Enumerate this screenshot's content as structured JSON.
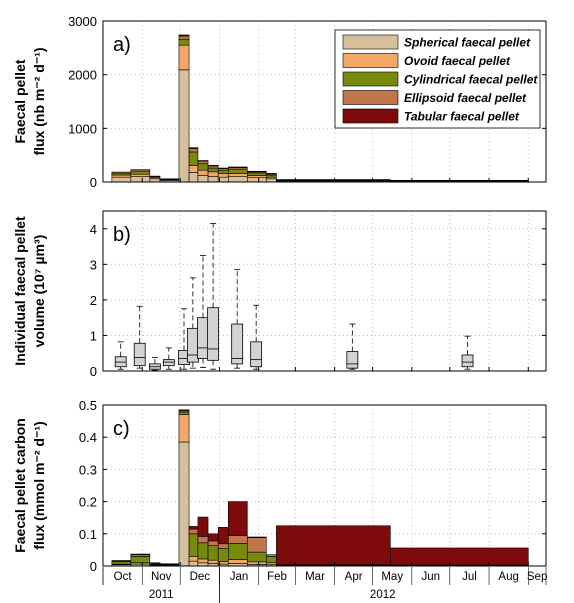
{
  "colors": {
    "spherical": "#d6bf9b",
    "ovoid": "#f1a766",
    "cylindrical": "#778a0e",
    "ellipsoid": "#c0764a",
    "tabular": "#7e0b0b",
    "box_fill": "#d3d3d3"
  },
  "chart_data": [
    {
      "id": "a",
      "type": "bar",
      "panel_label": "a)",
      "ylabel_lines": [
        "Faecal pellet",
        "flux (nb m⁻² d⁻¹)"
      ],
      "ylim": [
        0,
        3000
      ],
      "yticks": [
        "0",
        "1000",
        "2000",
        "3000"
      ],
      "grid": true,
      "legend_position": "top-right",
      "legend": [
        "Spherical faecal pellet",
        "Ovoid faecal pellet",
        "Cylindrical faecal pellet",
        "Ellipsoid faecal pellet",
        "Tabular faecal pellet"
      ],
      "bins": [
        {
          "start": "2011-10-08",
          "end": "2011-10-23",
          "spherical": 90,
          "ovoid": 40,
          "cylindrical": 35,
          "ellipsoid": 20,
          "tabular": 0
        },
        {
          "start": "2011-10-23",
          "end": "2011-11-07",
          "spherical": 100,
          "ovoid": 45,
          "cylindrical": 60,
          "ellipsoid": 25,
          "tabular": 0
        },
        {
          "start": "2011-11-07",
          "end": "2011-11-15",
          "spherical": 60,
          "ovoid": 20,
          "cylindrical": 20,
          "ellipsoid": 10,
          "tabular": 0
        },
        {
          "start": "2011-11-15",
          "end": "2011-11-30",
          "spherical": 30,
          "ovoid": 15,
          "cylindrical": 10,
          "ellipsoid": 5,
          "tabular": 0
        },
        {
          "start": "2011-11-30",
          "end": "2011-12-08",
          "spherical": 2090,
          "ovoid": 460,
          "cylindrical": 110,
          "ellipsoid": 60,
          "tabular": 20
        },
        {
          "start": "2011-12-08",
          "end": "2011-12-15",
          "spherical": 180,
          "ovoid": 130,
          "cylindrical": 250,
          "ellipsoid": 60,
          "tabular": 20
        },
        {
          "start": "2011-12-15",
          "end": "2011-12-23",
          "spherical": 120,
          "ovoid": 100,
          "cylindrical": 120,
          "ellipsoid": 50,
          "tabular": 10
        },
        {
          "start": "2011-12-23",
          "end": "2011-12-31",
          "spherical": 100,
          "ovoid": 90,
          "cylindrical": 70,
          "ellipsoid": 40,
          "tabular": 10
        },
        {
          "start": "2011-12-31",
          "end": "2012-01-08",
          "spherical": 90,
          "ovoid": 70,
          "cylindrical": 60,
          "ellipsoid": 30,
          "tabular": 10
        },
        {
          "start": "2012-01-08",
          "end": "2012-01-23",
          "spherical": 100,
          "ovoid": 60,
          "cylindrical": 80,
          "ellipsoid": 30,
          "tabular": 10
        },
        {
          "start": "2012-01-23",
          "end": "2012-02-07",
          "spherical": 80,
          "ovoid": 40,
          "cylindrical": 50,
          "ellipsoid": 20,
          "tabular": 10
        },
        {
          "start": "2012-02-07",
          "end": "2012-02-15",
          "spherical": 60,
          "ovoid": 30,
          "cylindrical": 40,
          "ellipsoid": 20,
          "tabular": 10
        },
        {
          "start": "2012-02-15",
          "end": "2012-05-15",
          "spherical": 18,
          "ovoid": 8,
          "cylindrical": 8,
          "ellipsoid": 6,
          "tabular": 6
        },
        {
          "start": "2012-05-15",
          "end": "2012-09-01",
          "spherical": 12,
          "ovoid": 6,
          "cylindrical": 6,
          "ellipsoid": 4,
          "tabular": 4
        }
      ]
    },
    {
      "id": "b",
      "type": "box",
      "panel_label": "b)",
      "ylabel_lines": [
        "Individual faecal pellet",
        "volume (10⁷ µm³)"
      ],
      "ylim": [
        0,
        4.5
      ],
      "yticks": [
        "0",
        "1",
        "2",
        "3",
        "4"
      ],
      "grid": true,
      "boxes": [
        {
          "date": "2011-10-15",
          "min": 0.05,
          "q1": 0.12,
          "median": 0.25,
          "q3": 0.4,
          "max": 0.82
        },
        {
          "date": "2011-10-30",
          "min": 0.08,
          "q1": 0.15,
          "median": 0.38,
          "q3": 0.78,
          "max": 1.82
        },
        {
          "date": "2011-11-11",
          "min": 0.02,
          "q1": 0.05,
          "median": 0.12,
          "q3": 0.2,
          "max": 0.38
        },
        {
          "date": "2011-11-22",
          "min": 0.05,
          "q1": 0.15,
          "median": 0.25,
          "q3": 0.32,
          "max": 0.65
        },
        {
          "date": "2011-12-04",
          "min": 0.05,
          "q1": 0.18,
          "median": 0.35,
          "q3": 0.58,
          "max": 1.75
        },
        {
          "date": "2011-12-11",
          "min": 0.08,
          "q1": 0.25,
          "median": 0.45,
          "q3": 1.2,
          "max": 2.62
        },
        {
          "date": "2011-12-19",
          "min": 0.1,
          "q1": 0.35,
          "median": 0.65,
          "q3": 1.5,
          "max": 3.25
        },
        {
          "date": "2011-12-27",
          "min": 0.05,
          "q1": 0.3,
          "median": 0.62,
          "q3": 1.78,
          "max": 4.15
        },
        {
          "date": "2012-01-15",
          "min": 0.08,
          "q1": 0.2,
          "median": 0.35,
          "q3": 1.32,
          "max": 2.85
        },
        {
          "date": "2012-01-30",
          "min": 0.05,
          "q1": 0.12,
          "median": 0.32,
          "q3": 0.82,
          "max": 1.85
        },
        {
          "date": "2012-04-15",
          "min": 0.05,
          "q1": 0.08,
          "median": 0.2,
          "q3": 0.55,
          "max": 1.32
        },
        {
          "date": "2012-07-15",
          "min": 0.05,
          "q1": 0.12,
          "median": 0.25,
          "q3": 0.45,
          "max": 0.98
        }
      ]
    },
    {
      "id": "c",
      "type": "bar",
      "panel_label": "c)",
      "ylabel_lines": [
        "Faecal pellet carbon",
        "flux (mmol m⁻² d⁻¹)"
      ],
      "ylim": [
        0,
        0.5
      ],
      "yticks": [
        "0",
        "0.1",
        "0.2",
        "0.3",
        "0.4",
        "0.5"
      ],
      "grid": true,
      "x_month_labels": [
        "Oct",
        "Nov",
        "Dec",
        "Jan",
        "Feb",
        "Mar",
        "Apr",
        "May",
        "Jun",
        "Jul",
        "Aug",
        "Sep"
      ],
      "x_year_labels": [
        "2011",
        "2012"
      ],
      "bins": [
        {
          "start": "2011-10-08",
          "end": "2011-10-23",
          "spherical": 0.004,
          "ovoid": 0.002,
          "cylindrical": 0.008,
          "ellipsoid": 0.002,
          "tabular": 0.001
        },
        {
          "start": "2011-10-23",
          "end": "2011-11-07",
          "spherical": 0.006,
          "ovoid": 0.004,
          "cylindrical": 0.02,
          "ellipsoid": 0.005,
          "tabular": 0.002
        },
        {
          "start": "2011-11-07",
          "end": "2011-11-15",
          "spherical": 0.003,
          "ovoid": 0.002,
          "cylindrical": 0.003,
          "ellipsoid": 0.001,
          "tabular": 0.001
        },
        {
          "start": "2011-11-15",
          "end": "2011-11-30",
          "spherical": 0.002,
          "ovoid": 0.001,
          "cylindrical": 0.002,
          "ellipsoid": 0.001,
          "tabular": 0.001
        },
        {
          "start": "2011-11-30",
          "end": "2011-12-08",
          "spherical": 0.385,
          "ovoid": 0.085,
          "cylindrical": 0.008,
          "ellipsoid": 0.004,
          "tabular": 0.003
        },
        {
          "start": "2011-12-08",
          "end": "2011-12-15",
          "spherical": 0.015,
          "ovoid": 0.015,
          "cylindrical": 0.07,
          "ellipsoid": 0.015,
          "tabular": 0.008
        },
        {
          "start": "2011-12-15",
          "end": "2011-12-23",
          "spherical": 0.01,
          "ovoid": 0.012,
          "cylindrical": 0.05,
          "ellipsoid": 0.02,
          "tabular": 0.06
        },
        {
          "start": "2011-12-23",
          "end": "2011-12-31",
          "spherical": 0.008,
          "ovoid": 0.01,
          "cylindrical": 0.045,
          "ellipsoid": 0.015,
          "tabular": 0.022
        },
        {
          "start": "2011-12-31",
          "end": "2012-01-08",
          "spherical": 0.006,
          "ovoid": 0.008,
          "cylindrical": 0.04,
          "ellipsoid": 0.015,
          "tabular": 0.051
        },
        {
          "start": "2012-01-08",
          "end": "2012-01-23",
          "spherical": 0.008,
          "ovoid": 0.012,
          "cylindrical": 0.05,
          "ellipsoid": 0.025,
          "tabular": 0.105
        },
        {
          "start": "2012-01-23",
          "end": "2012-02-07",
          "spherical": 0.005,
          "ovoid": 0.008,
          "cylindrical": 0.03,
          "ellipsoid": 0.045,
          "tabular": 0.002
        },
        {
          "start": "2012-02-07",
          "end": "2012-02-15",
          "spherical": 0.004,
          "ovoid": 0.006,
          "cylindrical": 0.02,
          "ellipsoid": 0.005,
          "tabular": 0.0
        },
        {
          "start": "2012-02-15",
          "end": "2012-05-15",
          "spherical": 0.001,
          "ovoid": 0.001,
          "cylindrical": 0.001,
          "ellipsoid": 0.001,
          "tabular": 0.121
        },
        {
          "start": "2012-05-15",
          "end": "2012-09-01",
          "spherical": 0.001,
          "ovoid": 0.001,
          "cylindrical": 0.001,
          "ellipsoid": 0.0,
          "tabular": 0.053
        }
      ]
    }
  ]
}
